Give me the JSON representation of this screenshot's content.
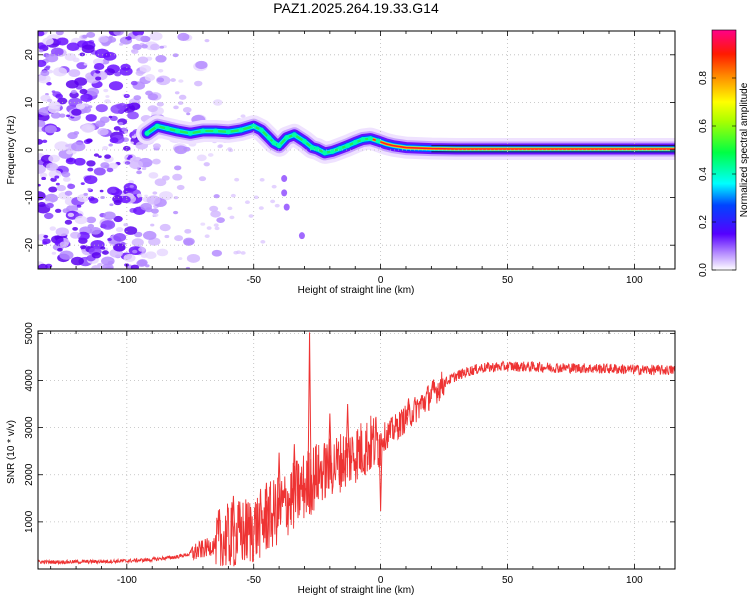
{
  "title": "PAZ1.2025.264.19.33.G14",
  "chart_data": [
    {
      "type": "heatmap",
      "xlabel": "Height of straight line (km)",
      "ylabel": "Frequency (Hz)",
      "xlim": [
        -135,
        116
      ],
      "ylim": [
        -25,
        25
      ],
      "xticks": [
        -100,
        -50,
        0,
        50,
        100
      ],
      "yticks": [
        -20,
        -10,
        0,
        10,
        20
      ],
      "ridge": {
        "x": [
          -92,
          -88,
          -84,
          -80,
          -75,
          -70,
          -65,
          -60,
          -55,
          -50,
          -47,
          -44,
          -42,
          -40,
          -37,
          -34,
          -30,
          -27,
          -25,
          -22,
          -19,
          -16,
          -13,
          -10,
          -7,
          -4,
          -1,
          2,
          5,
          10,
          20,
          30,
          60,
          100,
          116
        ],
        "y": [
          3.5,
          5,
          4.5,
          4,
          3.5,
          4,
          4,
          3.8,
          4.2,
          5,
          4.2,
          2.6,
          1.5,
          0.9,
          2.6,
          3.2,
          1.8,
          0.5,
          0.2,
          -0.6,
          -0.3,
          0.3,
          0.9,
          1.6,
          2.2,
          2.4,
          1.9,
          1.3,
          0.9,
          0.5,
          0.3,
          0.2,
          0.2,
          0.2,
          0.2
        ]
      },
      "colorbar": {
        "label": "Normalized spectral amplitude",
        "range": [
          0,
          1
        ],
        "ticks": [
          "0.0",
          "0.2",
          "0.4",
          "0.6",
          "0.8"
        ],
        "tick_values": [
          0,
          0.2,
          0.4,
          0.6,
          0.8
        ]
      }
    },
    {
      "type": "line",
      "xlabel": "Height of straight line (km)",
      "ylabel": "SNR (10 * v/v)",
      "xlim": [
        -135,
        116
      ],
      "ylim": [
        0,
        5050
      ],
      "xticks": [
        -100,
        -50,
        0,
        50,
        100
      ],
      "yticks": [
        1000,
        2000,
        3000,
        4000,
        5000
      ],
      "series": [
        {
          "name": "SNR",
          "color": "#ee3333",
          "x": [
            -135,
            -120,
            -110,
            -100,
            -90,
            -80,
            -75,
            -70,
            -65,
            -60,
            -55,
            -50,
            -45,
            -40,
            -35,
            -30,
            -25,
            -20,
            -15,
            -10,
            -5,
            0,
            5,
            10,
            15,
            20,
            25,
            30,
            35,
            40,
            50,
            60,
            70,
            80,
            90,
            100,
            110,
            116
          ],
          "y": [
            150,
            150,
            160,
            170,
            200,
            260,
            320,
            420,
            520,
            650,
            750,
            850,
            1050,
            1250,
            1500,
            1750,
            2000,
            2150,
            2300,
            2450,
            2600,
            2750,
            2950,
            3200,
            3450,
            3700,
            3950,
            4100,
            4200,
            4270,
            4300,
            4290,
            4270,
            4260,
            4250,
            4230,
            4220,
            4220
          ],
          "spikes": [
            {
              "x": -28,
              "y": 5020
            },
            {
              "x": -58,
              "y": 1550
            },
            {
              "x": -45,
              "y": 1830
            },
            {
              "x": -40,
              "y": 2470
            },
            {
              "x": -34,
              "y": 2650
            },
            {
              "x": -20,
              "y": 3300
            },
            {
              "x": -13,
              "y": 3500
            },
            {
              "x": 0,
              "y": 1230
            },
            {
              "x": 11,
              "y": 3620
            }
          ]
        }
      ]
    }
  ]
}
